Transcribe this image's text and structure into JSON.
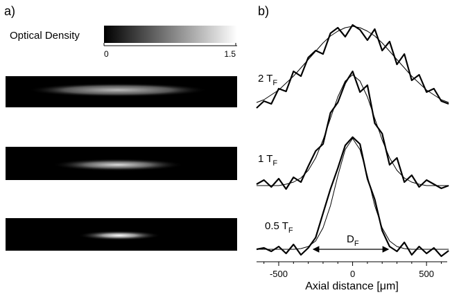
{
  "panel_a": {
    "label": "a)",
    "colorbar": {
      "title": "Optical Density",
      "clim": [
        0,
        1.5
      ],
      "ticks": [
        0,
        1.5
      ]
    }
  },
  "panel_b": {
    "label": "b)"
  },
  "chart_data": {
    "type": "line",
    "xlabel": "Axial distance [μm]",
    "x": [
      -650,
      -600,
      -550,
      -500,
      -450,
      -400,
      -350,
      -300,
      -250,
      -200,
      -150,
      -100,
      -50,
      0,
      50,
      100,
      150,
      200,
      250,
      300,
      350,
      400,
      450,
      500,
      550,
      600,
      650
    ],
    "xlim": [
      -650,
      640
    ],
    "ylim": [
      0,
      340
    ],
    "xticks": [
      -500,
      0,
      500
    ],
    "xminorticks": [
      -600,
      -400,
      -300,
      -200,
      -100,
      100,
      200,
      300,
      400,
      600
    ],
    "series": [
      {
        "color": "#000000",
        "linewidth": 2.2,
        "values": [
          222,
          232,
          228,
          250,
          246,
          275,
          268,
          295,
          305,
          300,
          330,
          338,
          325,
          342,
          335,
          320,
          336,
          305,
          318,
          285,
          300,
          262,
          270,
          245,
          250,
          232,
          228
        ]
      },
      {
        "color": "#000000",
        "linewidth": 2.2,
        "values": [
          112,
          118,
          108,
          120,
          105,
          122,
          115,
          138,
          160,
          170,
          215,
          230,
          258,
          275,
          245,
          255,
          200,
          185,
          140,
          150,
          115,
          125,
          108,
          118,
          112,
          106,
          110
        ]
      },
      {
        "color": "#000000",
        "linewidth": 2.2,
        "values": [
          18,
          20,
          15,
          22,
          12,
          25,
          10,
          20,
          35,
          70,
          105,
          135,
          168,
          180,
          170,
          120,
          90,
          45,
          22,
          15,
          28,
          10,
          22,
          12,
          20,
          8,
          16
        ]
      },
      {
        "color": "#000000",
        "linewidth": 1,
        "values": [
          230,
          234,
          241,
          248,
          258,
          268,
          280,
          292,
          304,
          316,
          326,
          333,
          338,
          340,
          338,
          333,
          326,
          316,
          304,
          292,
          280,
          268,
          258,
          248,
          241,
          234,
          230
        ]
      },
      {
        "color": "#000000",
        "linewidth": 1,
        "values": [
          110,
          110,
          110,
          110,
          112,
          115,
          121,
          132,
          150,
          176,
          207,
          238,
          261,
          270,
          261,
          238,
          207,
          176,
          150,
          132,
          121,
          115,
          112,
          110,
          110,
          110,
          110
        ]
      },
      {
        "color": "#000000",
        "linewidth": 1,
        "values": [
          18,
          18,
          18,
          18,
          18,
          18,
          19,
          22,
          30,
          49,
          81,
          124,
          162,
          178,
          162,
          124,
          81,
          49,
          30,
          22,
          19,
          18,
          18,
          18,
          18,
          18,
          18
        ]
      }
    ],
    "annotations": [
      {
        "text": "2 T",
        "sub": "F"
      },
      {
        "text": "1 T",
        "sub": "F"
      },
      {
        "text": "0.5 T",
        "sub": "F"
      },
      {
        "text": "D",
        "sub": "F"
      }
    ]
  }
}
